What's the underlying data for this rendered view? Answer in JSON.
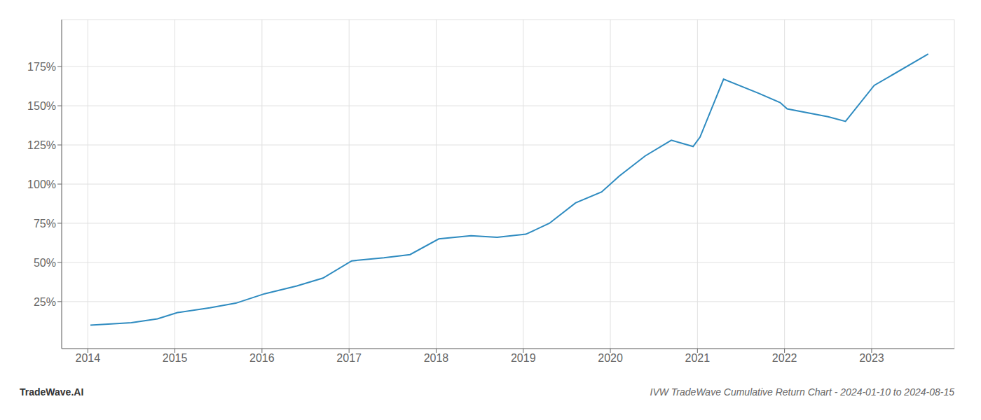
{
  "chart_data": {
    "type": "line",
    "title": "IVW TradeWave Cumulative Return Chart - 2024-01-10 to 2024-08-15",
    "annotations": [
      "TradeWave.AI"
    ],
    "color": "#2e8bc0",
    "grid": true,
    "x": [
      2014.03,
      2014.2,
      2014.5,
      2014.8,
      2015.03,
      2015.4,
      2015.7,
      2016.03,
      2016.4,
      2016.7,
      2017.03,
      2017.4,
      2017.7,
      2018.03,
      2018.4,
      2018.7,
      2019.03,
      2019.3,
      2019.6,
      2019.9,
      2020.1,
      2020.4,
      2020.7,
      2020.95,
      2021.03,
      2021.3,
      2021.7,
      2021.95,
      2022.03,
      2022.5,
      2022.7,
      2023.03,
      2023.65
    ],
    "values": [
      10,
      10.5,
      11.5,
      14,
      18,
      21,
      24,
      30,
      35,
      40,
      51,
      53,
      55,
      65,
      67,
      66,
      68,
      75,
      88,
      95,
      105,
      118,
      128,
      124,
      130,
      167,
      158,
      152,
      148,
      143,
      140,
      163,
      183
    ],
    "xlim": [
      2013.7,
      2023.95
    ],
    "xticks": [
      2014,
      2015,
      2016,
      2017,
      2018,
      2019,
      2020,
      2021,
      2022,
      2023
    ],
    "ylim": [
      -5,
      205
    ],
    "yticks": [
      {
        "value": 25,
        "label": "25%"
      },
      {
        "value": 50,
        "label": "50%"
      },
      {
        "value": 75,
        "label": "75%"
      },
      {
        "value": 100,
        "label": "100%"
      },
      {
        "value": 125,
        "label": "125%"
      },
      {
        "value": 150,
        "label": "150%"
      },
      {
        "value": 175,
        "label": "175%"
      }
    ]
  }
}
